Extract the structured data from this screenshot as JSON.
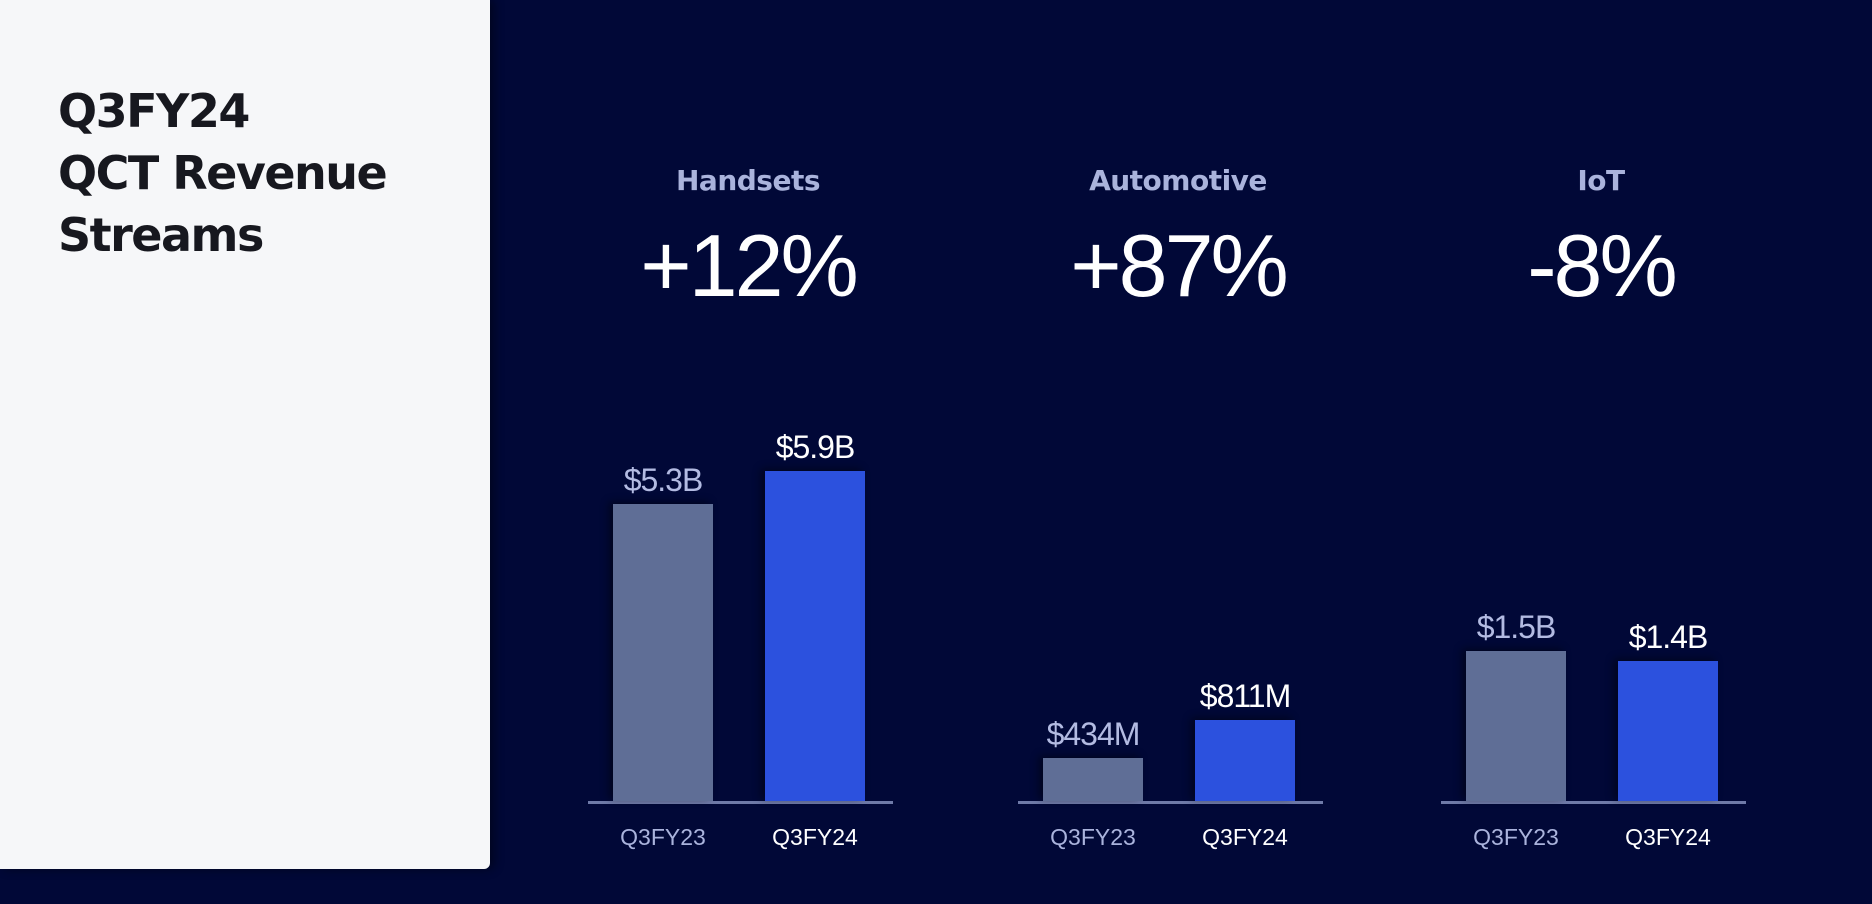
{
  "page": {
    "title_lines": [
      "Q3FY24",
      "QCT Revenue",
      "Streams"
    ]
  },
  "colors": {
    "background": "#010837",
    "panel": "#f6f7f9",
    "prior_bar": "#5f6e96",
    "current_bar": "#2c51de"
  },
  "chart_data": [
    {
      "type": "bar",
      "title": "Handsets",
      "change": "+12%",
      "categories": [
        "Q3FY23",
        "Q3FY24"
      ],
      "values": [
        5.3,
        5.9
      ],
      "unit": "USD billions",
      "value_labels": [
        "$5.3B",
        "$5.9B"
      ]
    },
    {
      "type": "bar",
      "title": "Automotive",
      "change": "+87%",
      "categories": [
        "Q3FY23",
        "Q3FY24"
      ],
      "values": [
        434,
        811
      ],
      "unit": "USD millions",
      "value_labels": [
        "$434M",
        "$811M"
      ]
    },
    {
      "type": "bar",
      "title": "IoT",
      "change": "-8%",
      "categories": [
        "Q3FY23",
        "Q3FY24"
      ],
      "values": [
        1.5,
        1.4
      ],
      "unit": "USD billions",
      "value_labels": [
        "$1.5B",
        "$1.4B"
      ]
    }
  ]
}
